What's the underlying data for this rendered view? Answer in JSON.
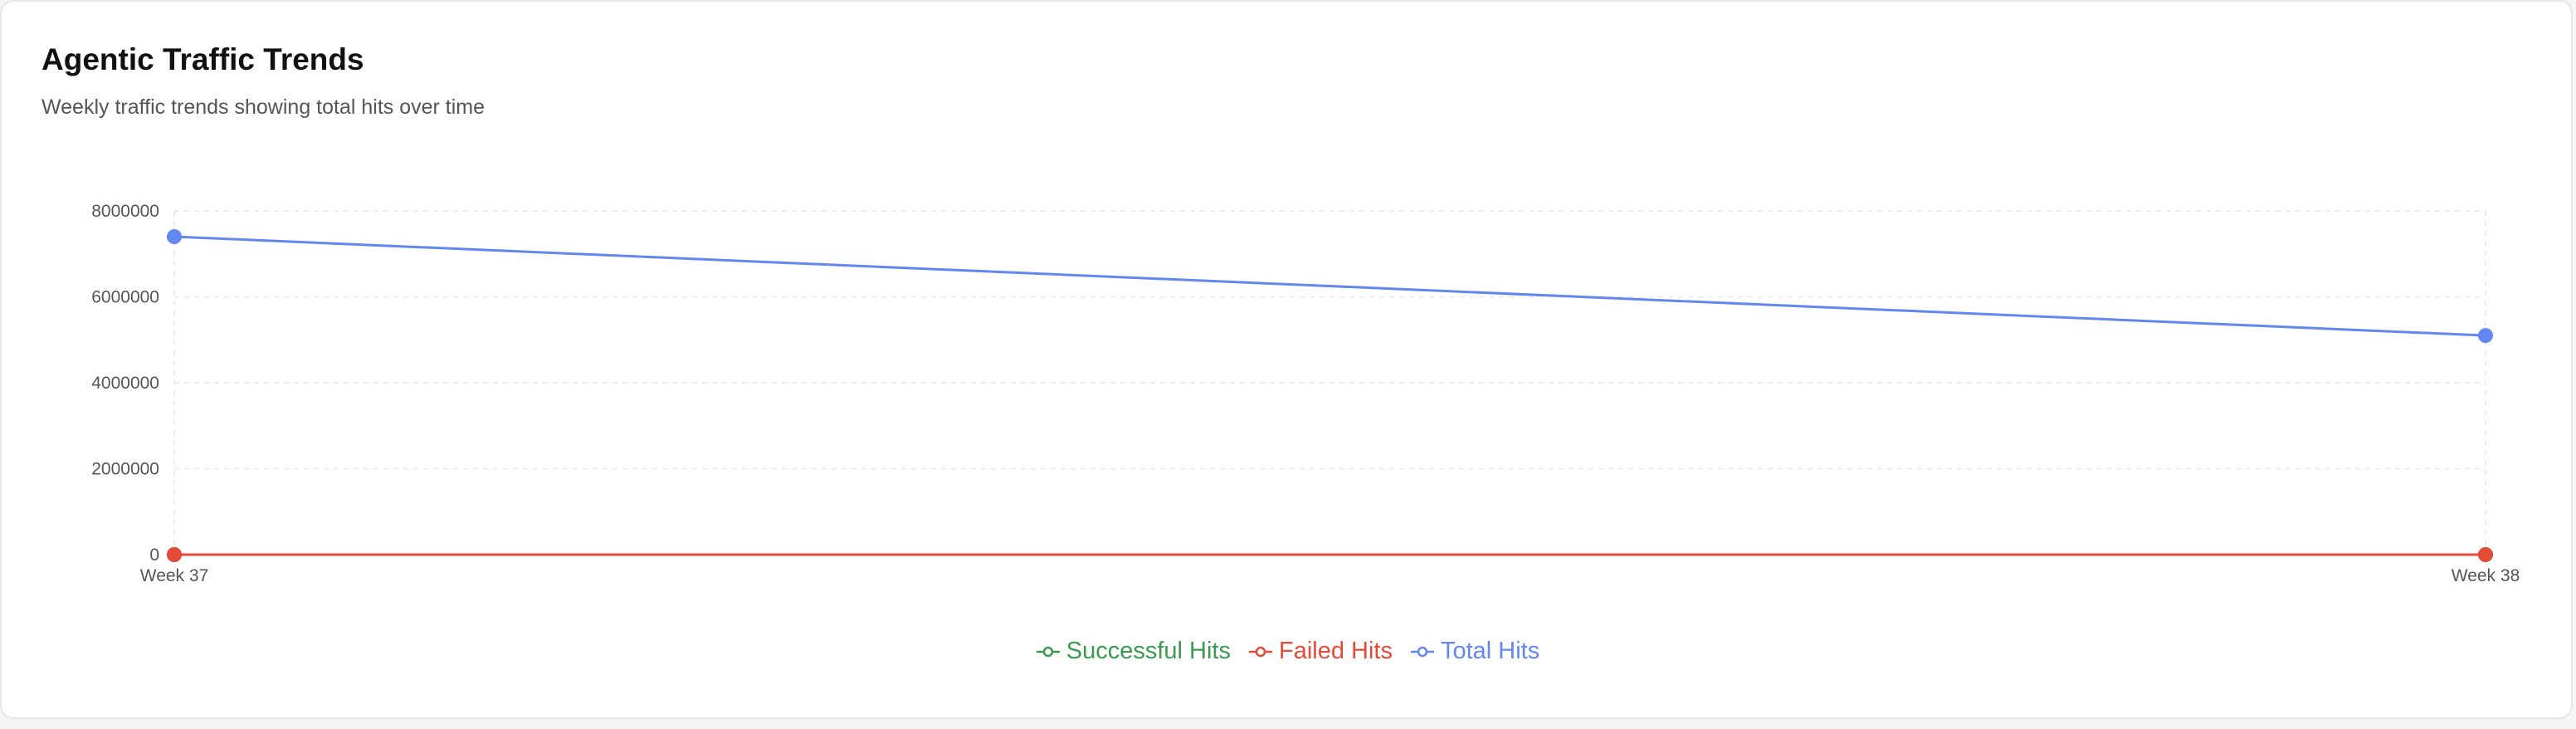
{
  "header": {
    "title": "Agentic Traffic Trends",
    "subtitle": "Weekly traffic trends showing total hits over time"
  },
  "colors": {
    "successful": "#3a9a4f",
    "failed": "#e34a37",
    "total": "#6287f0"
  },
  "chart_data": {
    "type": "line",
    "title": "Agentic Traffic Trends",
    "subtitle": "Weekly traffic trends showing total hits over time",
    "categories": [
      "Week 37",
      "Week 38"
    ],
    "ylim": [
      0,
      8000000
    ],
    "yticks": [
      "0",
      "2000000",
      "4000000",
      "6000000",
      "8000000"
    ],
    "grid": true,
    "legend_position": "bottom-center",
    "series": [
      {
        "name": "Successful Hits",
        "color": "#3a9a4f",
        "values": [
          0,
          0
        ]
      },
      {
        "name": "Failed Hits",
        "color": "#e34a37",
        "values": [
          0,
          0
        ]
      },
      {
        "name": "Total Hits",
        "color": "#6287f0",
        "values": [
          7400000,
          5100000
        ]
      }
    ]
  }
}
